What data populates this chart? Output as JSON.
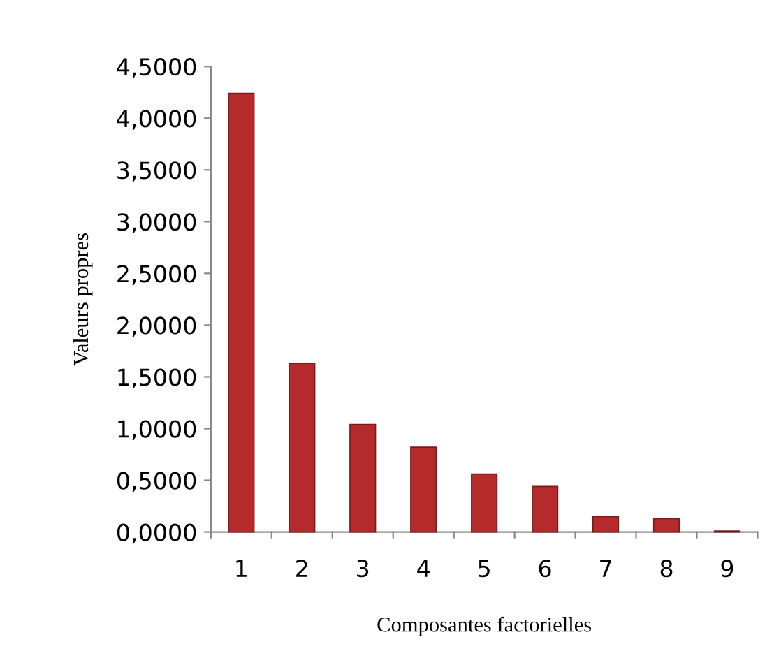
{
  "chart_data": {
    "type": "bar",
    "xlabel": "Composantes factorielles",
    "ylabel": "Valeurs propres",
    "categories": [
      "1",
      "2",
      "3",
      "4",
      "5",
      "6",
      "7",
      "8",
      "9"
    ],
    "values": [
      4.24,
      1.63,
      1.04,
      0.82,
      0.56,
      0.44,
      0.15,
      0.13,
      0.01
    ],
    "color": "#b52b2b",
    "ylim": [
      0,
      4.5
    ],
    "yticks": [
      {
        "value": 0,
        "label": "0,0000"
      },
      {
        "value": 0.5,
        "label": "0,5000"
      },
      {
        "value": 1,
        "label": "1,0000"
      },
      {
        "value": 1.5,
        "label": "1,5000"
      },
      {
        "value": 2,
        "label": "2,0000"
      },
      {
        "value": 2.5,
        "label": "2,5000"
      },
      {
        "value": 3,
        "label": "3,0000"
      },
      {
        "value": 3.5,
        "label": "3,5000"
      },
      {
        "value": 4,
        "label": "4,0000"
      },
      {
        "value": 4.5,
        "label": "4,5000"
      }
    ],
    "grid": false,
    "legend": false
  }
}
